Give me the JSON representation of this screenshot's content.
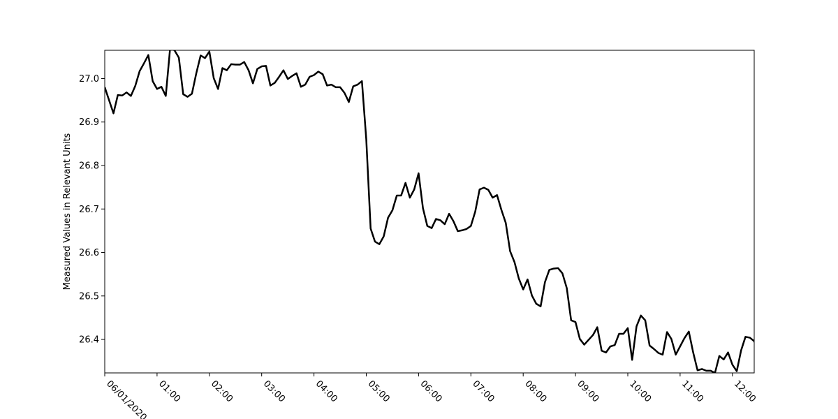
{
  "chart_data": {
    "type": "line",
    "title": "",
    "xlabel": "",
    "ylabel": "Measured Values in Relevant Units",
    "x_start": "2020-06-01T00:00",
    "x_step_minutes": 5,
    "xlim": [
      "2020-06-01T00:00",
      "2020-06-01T12:25"
    ],
    "ylim": [
      26.323,
      27.065
    ],
    "grid": false,
    "legend": "none",
    "line_color": "#000000",
    "x_ticks": [
      {
        "label": "06/01/2020",
        "time": "2020-06-01T00:00"
      },
      {
        "label": "01:00",
        "time": "2020-06-01T01:00"
      },
      {
        "label": "02:00",
        "time": "2020-06-01T02:00"
      },
      {
        "label": "03:00",
        "time": "2020-06-01T03:00"
      },
      {
        "label": "04:00",
        "time": "2020-06-01T04:00"
      },
      {
        "label": "05:00",
        "time": "2020-06-01T05:00"
      },
      {
        "label": "06:00",
        "time": "2020-06-01T06:00"
      },
      {
        "label": "07:00",
        "time": "2020-06-01T07:00"
      },
      {
        "label": "08:00",
        "time": "2020-06-01T08:00"
      },
      {
        "label": "09:00",
        "time": "2020-06-01T09:00"
      },
      {
        "label": "10:00",
        "time": "2020-06-01T10:00"
      },
      {
        "label": "11:00",
        "time": "2020-06-01T11:00"
      },
      {
        "label": "12:00",
        "time": "2020-06-01T12:00"
      }
    ],
    "y_ticks": [
      {
        "label": "26.4",
        "value": 26.4
      },
      {
        "label": "26.5",
        "value": 26.5
      },
      {
        "label": "26.6",
        "value": 26.6
      },
      {
        "label": "26.7",
        "value": 26.7
      },
      {
        "label": "26.8",
        "value": 26.8
      },
      {
        "label": "26.9",
        "value": 26.9
      },
      {
        "label": "27.0",
        "value": 27.0
      }
    ],
    "series": [
      {
        "values": [
          26.98,
          26.95,
          26.92,
          26.962,
          26.961,
          26.968,
          26.96,
          26.983,
          27.017,
          27.035,
          27.054,
          26.994,
          26.976,
          26.981,
          26.96,
          27.07,
          27.065,
          27.048,
          26.964,
          26.958,
          26.965,
          27.012,
          27.053,
          27.047,
          27.062,
          27.001,
          26.976,
          27.024,
          27.019,
          27.033,
          27.032,
          27.032,
          27.038,
          27.019,
          26.989,
          27.022,
          27.028,
          27.029,
          26.984,
          26.99,
          27.004,
          27.019,
          26.999,
          27.006,
          27.012,
          26.981,
          26.986,
          27.004,
          27.008,
          27.016,
          27.01,
          26.984,
          26.986,
          26.98,
          26.98,
          26.967,
          26.946,
          26.982,
          26.986,
          26.994,
          26.86,
          26.655,
          26.625,
          26.619,
          26.637,
          26.68,
          26.697,
          26.731,
          26.731,
          26.76,
          26.726,
          26.745,
          26.782,
          26.702,
          26.661,
          26.656,
          26.677,
          26.674,
          26.665,
          26.689,
          26.672,
          26.649,
          26.651,
          26.654,
          26.661,
          26.694,
          26.745,
          26.749,
          26.744,
          26.726,
          26.732,
          26.698,
          26.668,
          26.603,
          26.578,
          26.54,
          26.515,
          26.538,
          26.501,
          26.482,
          26.476,
          26.532,
          26.56,
          26.563,
          26.564,
          26.552,
          26.518,
          26.444,
          26.44,
          26.401,
          26.388,
          26.399,
          26.41,
          26.428,
          26.374,
          26.37,
          26.384,
          26.387,
          26.413,
          26.413,
          26.426,
          26.353,
          26.43,
          26.455,
          26.444,
          26.386,
          26.378,
          26.369,
          26.365,
          26.417,
          26.401,
          26.365,
          26.384,
          26.403,
          26.418,
          26.37,
          26.329,
          26.332,
          26.328,
          26.328,
          26.323,
          26.362,
          26.354,
          26.37,
          26.342,
          26.327,
          26.375,
          26.406,
          26.404,
          26.396,
          26.368
        ]
      }
    ]
  }
}
